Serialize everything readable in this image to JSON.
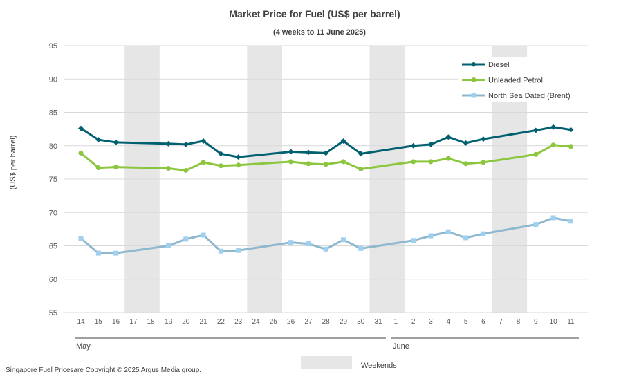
{
  "chart_data": {
    "type": "line",
    "title": "Market Price for Fuel (US$ per barrel)",
    "subtitle": "(4 weeks to 11 June 2025)",
    "ylabel": "(US$ per barrel)",
    "ylim": [
      55,
      95
    ],
    "yticks": [
      55,
      60,
      65,
      70,
      75,
      80,
      85,
      90,
      95
    ],
    "grid": true,
    "legend_position": "top-right",
    "x": [
      "14",
      "15",
      "16",
      "17",
      "18",
      "19",
      "20",
      "21",
      "22",
      "23",
      "24",
      "25",
      "26",
      "27",
      "28",
      "29",
      "30",
      "31",
      "1",
      "2",
      "3",
      "4",
      "5",
      "6",
      "7",
      "8",
      "9",
      "10",
      "11"
    ],
    "months": [
      {
        "label": "May",
        "from": "14",
        "to": "31"
      },
      {
        "label": "June",
        "from": "1",
        "to": "11"
      }
    ],
    "weekends": [
      [
        "17",
        "18"
      ],
      [
        "24",
        "25"
      ],
      [
        "31",
        "1"
      ],
      [
        "7",
        "8"
      ]
    ],
    "weekends_label": "Weekends",
    "series": [
      {
        "name": "Diesel",
        "color": "#006070",
        "marker": "diamond",
        "values": [
          82.6,
          80.9,
          80.5,
          null,
          null,
          80.3,
          80.2,
          80.7,
          78.8,
          78.3,
          null,
          null,
          79.1,
          79.0,
          78.9,
          80.7,
          78.8,
          null,
          null,
          80.0,
          80.2,
          81.3,
          80.4,
          81.0,
          null,
          null,
          82.3,
          82.8,
          82.4
        ]
      },
      {
        "name": "Unleaded Petrol",
        "color": "#8cc63f",
        "marker": "circle",
        "values": [
          78.9,
          76.7,
          76.8,
          null,
          null,
          76.6,
          76.3,
          77.5,
          77.0,
          77.1,
          null,
          null,
          77.6,
          77.3,
          77.2,
          77.6,
          76.5,
          null,
          null,
          77.6,
          77.6,
          78.1,
          77.3,
          77.5,
          null,
          null,
          78.7,
          80.1,
          79.9
        ]
      },
      {
        "name": "North Sea Dated (Brent)",
        "color": "#8fb8cf",
        "marker": "square",
        "values": [
          66.1,
          63.9,
          63.9,
          null,
          null,
          65.0,
          66.0,
          66.6,
          64.2,
          64.3,
          null,
          null,
          65.5,
          65.3,
          64.5,
          65.9,
          64.6,
          null,
          null,
          65.8,
          66.5,
          67.1,
          66.2,
          66.8,
          null,
          null,
          68.2,
          69.2,
          68.7
        ]
      }
    ]
  },
  "footer": "Singapore Fuel Pricesare Copyright © 2025 Argus Media group."
}
